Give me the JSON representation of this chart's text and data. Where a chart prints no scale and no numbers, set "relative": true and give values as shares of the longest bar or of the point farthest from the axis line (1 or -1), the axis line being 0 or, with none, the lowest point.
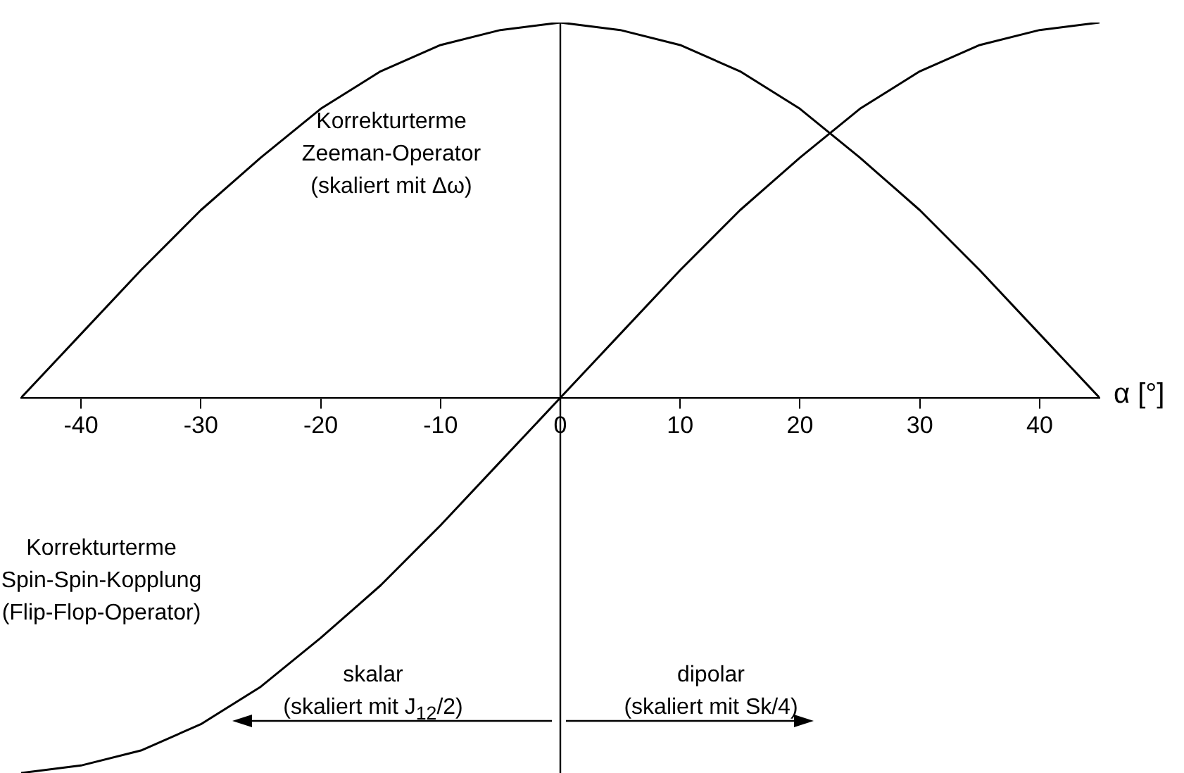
{
  "chart_data": {
    "type": "line",
    "relative": true,
    "xlabel": "α [°]",
    "x": [
      -45,
      -40,
      -35,
      -30,
      -25,
      -20,
      -15,
      -10,
      -5,
      0,
      5,
      10,
      15,
      20,
      25,
      30,
      35,
      40,
      45
    ],
    "xlim": [
      -45,
      45
    ],
    "xticks": [
      -40,
      -30,
      -20,
      -10,
      0,
      10,
      20,
      30,
      40
    ],
    "series": [
      {
        "color": "#000000",
        "values": [
          0,
          0.17,
          0.34,
          0.5,
          0.64,
          0.77,
          0.87,
          0.94,
          0.98,
          1,
          0.98,
          0.94,
          0.87,
          0.77,
          0.64,
          0.5,
          0.34,
          0.17,
          0
        ]
      },
      {
        "color": "#000000",
        "values": [
          -1,
          -0.98,
          -0.94,
          -0.87,
          -0.77,
          -0.64,
          -0.5,
          -0.34,
          -0.17,
          0,
          0.17,
          0.34,
          0.5,
          0.64,
          0.77,
          0.87,
          0.94,
          0.98,
          1
        ]
      }
    ],
    "ref_lines": [
      {
        "axis": "x",
        "value": 0,
        "color": "#000000"
      }
    ],
    "annotations": [
      "Korrekturterme\nZeeman-Operator\n(skaliert mit Δω)",
      "Korrekturterme\nSpin-Spin-Kopplung\n(Flip-Flop-Operator)",
      "skalar\n(skaliert mit J$_{12}$/2)",
      "dipolar\n(skaliert mit Sk/4)"
    ],
    "tick_labels": "x",
    "grid": false,
    "legend": false,
    "marker": "none"
  }
}
